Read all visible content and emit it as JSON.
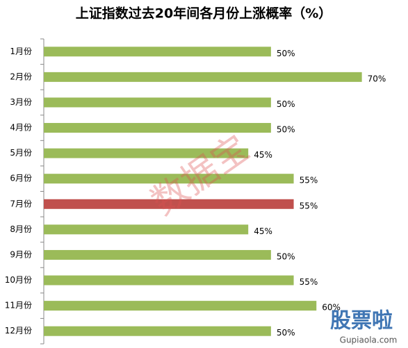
{
  "chart_data": {
    "type": "bar",
    "orientation": "horizontal",
    "title": "上证指数过去20年间各月份上涨概率（%）",
    "categories": [
      "1月份",
      "2月份",
      "3月份",
      "4月份",
      "5月份",
      "6月份",
      "7月份",
      "8月份",
      "9月份",
      "10月份",
      "11月份",
      "12月份"
    ],
    "values": [
      50,
      70,
      50,
      50,
      45,
      55,
      55,
      45,
      50,
      55,
      60,
      50
    ],
    "value_labels": [
      "50%",
      "70%",
      "50%",
      "50%",
      "45%",
      "55%",
      "55%",
      "45%",
      "50%",
      "55%",
      "60%",
      "50%"
    ],
    "colors": [
      "#9bbb59",
      "#9bbb59",
      "#9bbb59",
      "#9bbb59",
      "#9bbb59",
      "#9bbb59",
      "#c0504d",
      "#9bbb59",
      "#9bbb59",
      "#9bbb59",
      "#9bbb59",
      "#9bbb59"
    ],
    "xlim": [
      0,
      80
    ],
    "annotations": [
      "数据宝",
      "股票啦",
      "Gupiaola.com"
    ]
  }
}
